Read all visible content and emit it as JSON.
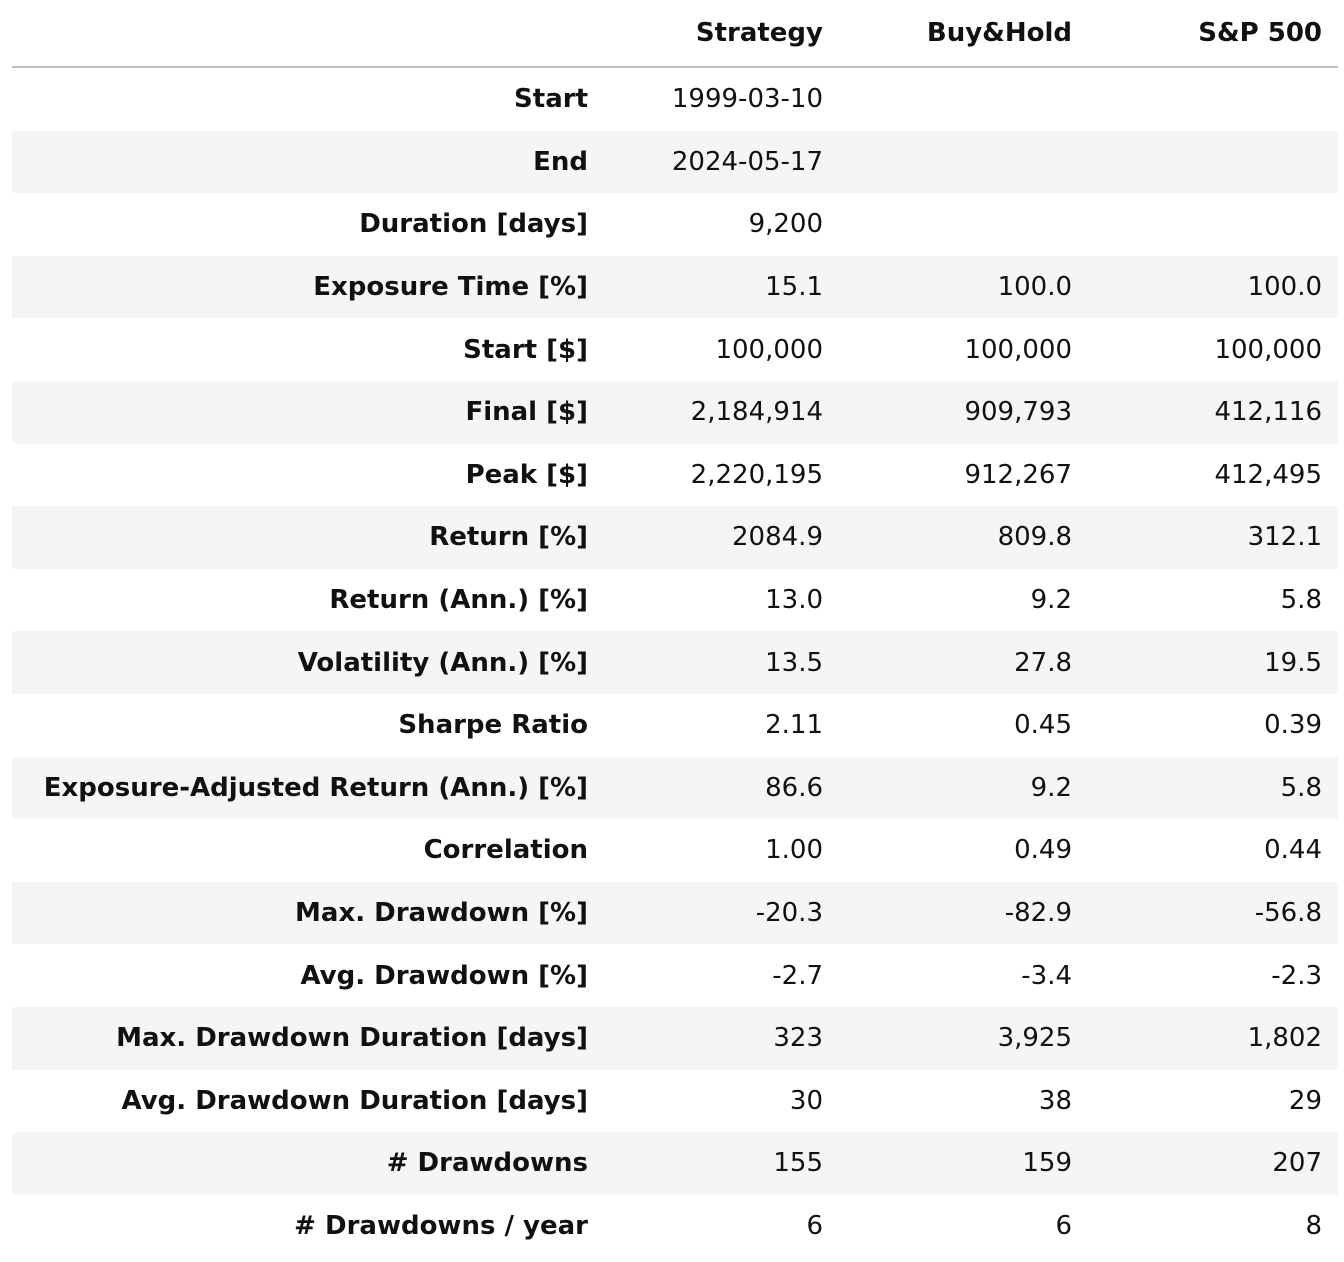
{
  "table": {
    "columns": [
      "",
      "Strategy",
      "Buy&Hold",
      "S&P 500"
    ],
    "rows": [
      {
        "label": "Start",
        "values": [
          "1999-03-10",
          "",
          ""
        ]
      },
      {
        "label": "End",
        "values": [
          "2024-05-17",
          "",
          ""
        ]
      },
      {
        "label": "Duration [days]",
        "values": [
          "9,200",
          "",
          ""
        ]
      },
      {
        "label": "Exposure Time [%]",
        "values": [
          "15.1",
          "100.0",
          "100.0"
        ]
      },
      {
        "label": "Start [$]",
        "values": [
          "100,000",
          "100,000",
          "100,000"
        ]
      },
      {
        "label": "Final [$]",
        "values": [
          "2,184,914",
          "909,793",
          "412,116"
        ]
      },
      {
        "label": "Peak [$]",
        "values": [
          "2,220,195",
          "912,267",
          "412,495"
        ]
      },
      {
        "label": "Return [%]",
        "values": [
          "2084.9",
          "809.8",
          "312.1"
        ]
      },
      {
        "label": "Return (Ann.) [%]",
        "values": [
          "13.0",
          "9.2",
          "5.8"
        ]
      },
      {
        "label": "Volatility (Ann.) [%]",
        "values": [
          "13.5",
          "27.8",
          "19.5"
        ]
      },
      {
        "label": "Sharpe Ratio",
        "values": [
          "2.11",
          "0.45",
          "0.39"
        ]
      },
      {
        "label": "Exposure-Adjusted Return (Ann.) [%]",
        "values": [
          "86.6",
          "9.2",
          "5.8"
        ]
      },
      {
        "label": "Correlation",
        "values": [
          "1.00",
          "0.49",
          "0.44"
        ]
      },
      {
        "label": "Max. Drawdown [%]",
        "values": [
          "-20.3",
          "-82.9",
          "-56.8"
        ]
      },
      {
        "label": "Avg. Drawdown [%]",
        "values": [
          "-2.7",
          "-3.4",
          "-2.3"
        ]
      },
      {
        "label": "Max. Drawdown Duration [days]",
        "values": [
          "323",
          "3,925",
          "1,802"
        ]
      },
      {
        "label": "Avg. Drawdown Duration [days]",
        "values": [
          "30",
          "38",
          "29"
        ]
      },
      {
        "label": "# Drawdowns",
        "values": [
          "155",
          "159",
          "207"
        ]
      },
      {
        "label": "# Drawdowns / year",
        "values": [
          "6",
          "6",
          "8"
        ]
      }
    ]
  },
  "colors": {
    "stripe": "#f5f5f5",
    "header_rule": "#bdbdbd",
    "text": "#111111"
  }
}
